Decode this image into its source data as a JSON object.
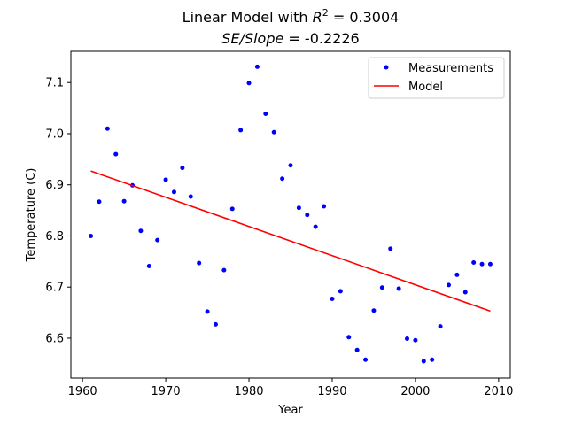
{
  "chart_data": {
    "type": "scatter",
    "title_line1_prefix": "Linear  Model with ",
    "title_line1_var": "R",
    "title_line1_sup": "2",
    "title_line1_eq": " =  0.3004",
    "title_line2_var": "SE/Slope",
    "title_line2_eq": " =  -0.2226",
    "xlabel": "Year",
    "ylabel": "Temperature (C)",
    "xlim": [
      1958.6,
      2011.4
    ],
    "ylim": [
      6.522,
      7.161
    ],
    "xticks": [
      1960,
      1970,
      1980,
      1990,
      2000,
      2010
    ],
    "xtick_labels": [
      "1960",
      "1970",
      "1980",
      "1990",
      "2000",
      "2010"
    ],
    "yticks": [
      6.6,
      6.7,
      6.8,
      6.9,
      7.0,
      7.1
    ],
    "ytick_labels": [
      "6.6",
      "6.7",
      "6.8",
      "6.9",
      "7.0",
      "7.1"
    ],
    "grid": false,
    "legend_position": "top-right",
    "series": [
      {
        "name": "Measurements",
        "kind": "points",
        "color": "#0000ff",
        "x": [
          1961,
          1962,
          1963,
          1964,
          1965,
          1966,
          1967,
          1968,
          1969,
          1970,
          1971,
          1972,
          1973,
          1974,
          1975,
          1976,
          1977,
          1978,
          1979,
          1980,
          1981,
          1982,
          1983,
          1984,
          1985,
          1986,
          1987,
          1988,
          1989,
          1990,
          1991,
          1992,
          1993,
          1994,
          1995,
          1996,
          1997,
          1998,
          1999,
          2000,
          2001,
          2002,
          2003,
          2004,
          2005,
          2006,
          2007,
          2008,
          2009
        ],
        "y": [
          6.8,
          6.867,
          7.01,
          6.96,
          6.868,
          6.899,
          6.81,
          6.741,
          6.792,
          6.91,
          6.886,
          6.933,
          6.877,
          6.747,
          6.652,
          6.627,
          6.733,
          6.853,
          7.007,
          7.099,
          7.131,
          7.039,
          7.003,
          6.912,
          6.938,
          6.855,
          6.841,
          6.818,
          6.858,
          6.677,
          6.692,
          6.602,
          6.577,
          6.558,
          6.654,
          6.699,
          6.775,
          6.697,
          6.599,
          6.596,
          6.555,
          6.558,
          6.623,
          6.704,
          6.724,
          6.69,
          6.748,
          6.745,
          6.745
        ]
      },
      {
        "name": "Model",
        "kind": "line",
        "color": "#ff0000",
        "x": [
          1961,
          2009
        ],
        "y": [
          6.927,
          6.653
        ]
      }
    ]
  }
}
